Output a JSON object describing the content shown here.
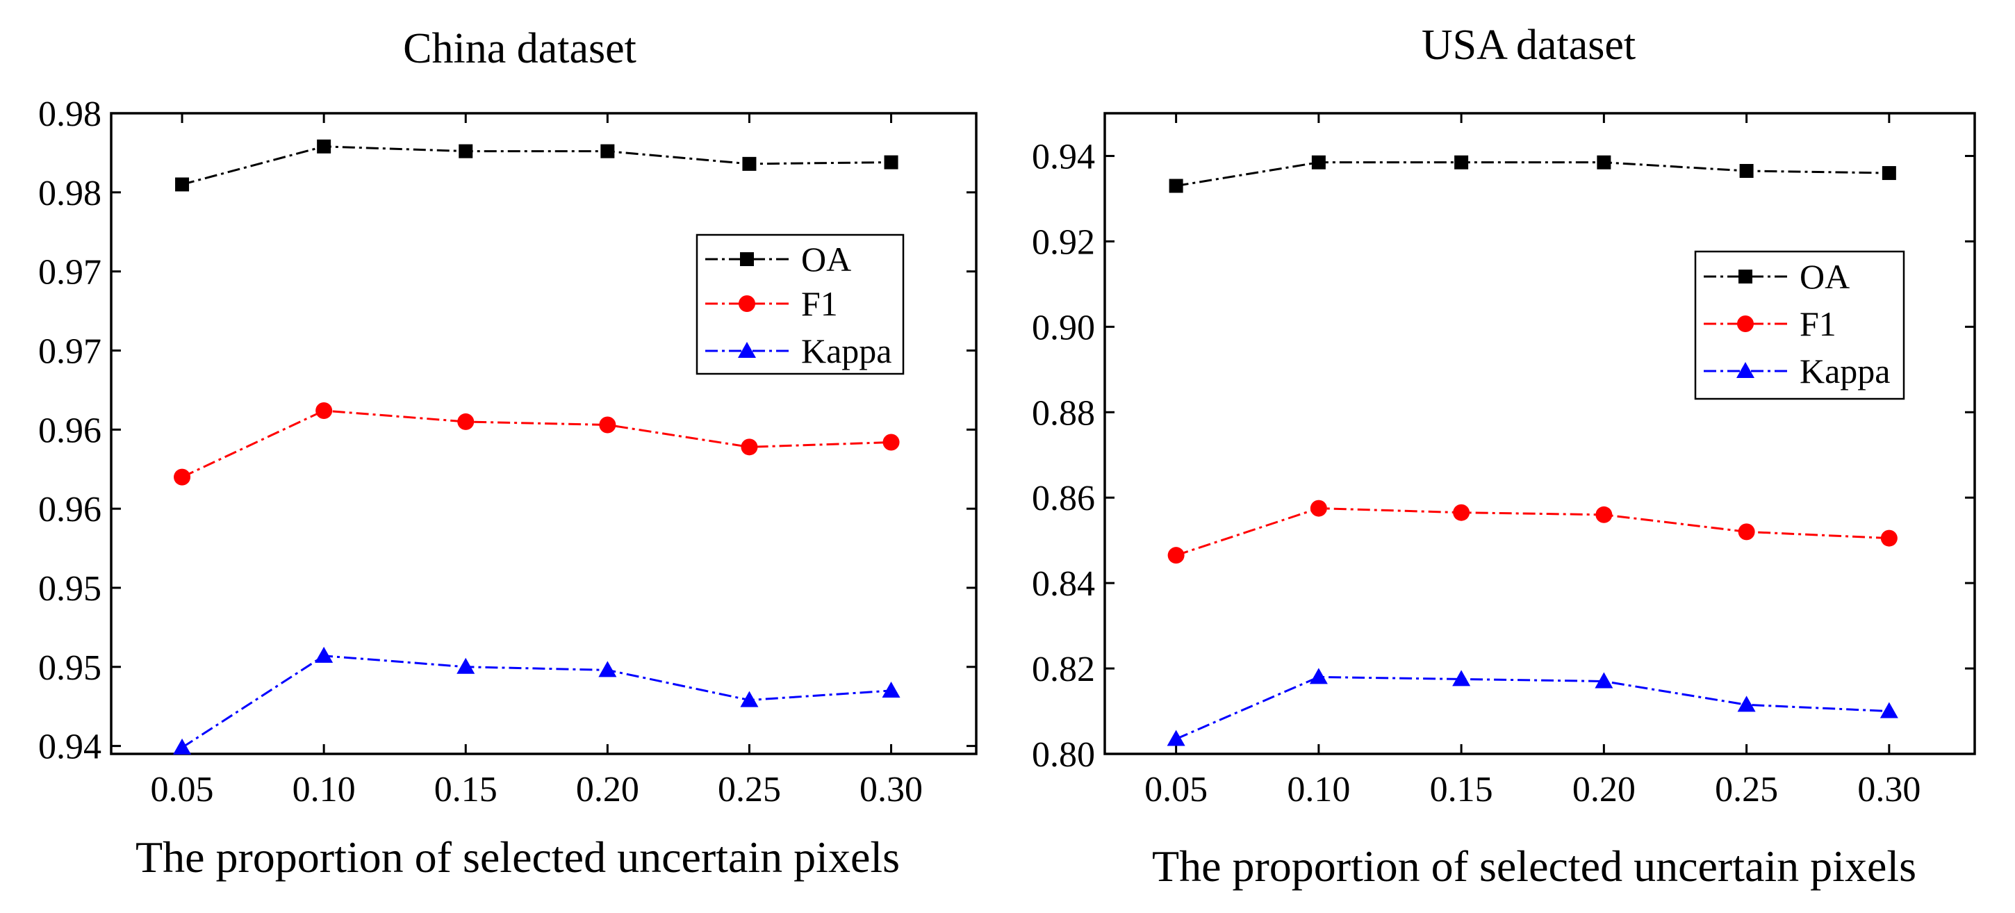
{
  "chart_data": [
    {
      "type": "line",
      "title": "China dataset",
      "xlabel": "The proportion of selected uncertain pixels",
      "ylabel": "",
      "categories": [
        "0.05",
        "0.10",
        "0.15",
        "0.20",
        "0.25",
        "0.30"
      ],
      "x": [
        0.05,
        0.1,
        0.15,
        0.2,
        0.25,
        0.3
      ],
      "xlim": [
        0.025,
        0.33
      ],
      "ylim": [
        0.9395,
        0.98
      ],
      "yticks": [
        0.94,
        0.945,
        0.95,
        0.955,
        0.96,
        0.965,
        0.97,
        0.975,
        0.98,
        0.985
      ],
      "ytick_labels": [
        "0.94",
        "0.95",
        "0.95",
        "0.96",
        "0.96",
        "0.97",
        "0.97",
        "0.98",
        "0.98",
        ""
      ],
      "legend_position": "upper-right",
      "series": [
        {
          "name": "OA",
          "color": "#000000",
          "marker": "square",
          "values": [
            0.9755,
            0.9779,
            0.9776,
            0.9776,
            0.9768,
            0.9769
          ]
        },
        {
          "name": "F1",
          "color": "#ff0000",
          "marker": "circle",
          "values": [
            0.957,
            0.9612,
            0.9605,
            0.9603,
            0.9589,
            0.9592
          ]
        },
        {
          "name": "Kappa",
          "color": "#0000ff",
          "marker": "triangle",
          "values": [
            0.9399,
            0.9457,
            0.945,
            0.9448,
            0.9429,
            0.9435
          ]
        }
      ]
    },
    {
      "type": "line",
      "title": "USA dataset",
      "xlabel": "The proportion of selected uncertain pixels",
      "ylabel": "",
      "categories": [
        "0.05",
        "0.10",
        "0.15",
        "0.20",
        "0.25",
        "0.30"
      ],
      "x": [
        0.05,
        0.1,
        0.15,
        0.2,
        0.25,
        0.3
      ],
      "xlim": [
        0.025,
        0.33
      ],
      "ylim": [
        0.8,
        0.95
      ],
      "yticks": [
        0.8,
        0.82,
        0.84,
        0.86,
        0.88,
        0.9,
        0.92,
        0.94
      ],
      "ytick_labels": [
        "0.80",
        "0.82",
        "0.84",
        "0.86",
        "0.88",
        "0.90",
        "0.92",
        "0.94"
      ],
      "legend_position": "upper-right",
      "series": [
        {
          "name": "OA",
          "color": "#000000",
          "marker": "square",
          "values": [
            0.933,
            0.9385,
            0.9385,
            0.9385,
            0.9365,
            0.936
          ]
        },
        {
          "name": "F1",
          "color": "#ff0000",
          "marker": "circle",
          "values": [
            0.8465,
            0.8575,
            0.8565,
            0.856,
            0.852,
            0.8505
          ]
        },
        {
          "name": "Kappa",
          "color": "#0000ff",
          "marker": "triangle",
          "values": [
            0.8035,
            0.818,
            0.8175,
            0.817,
            0.8115,
            0.81
          ]
        }
      ]
    }
  ]
}
